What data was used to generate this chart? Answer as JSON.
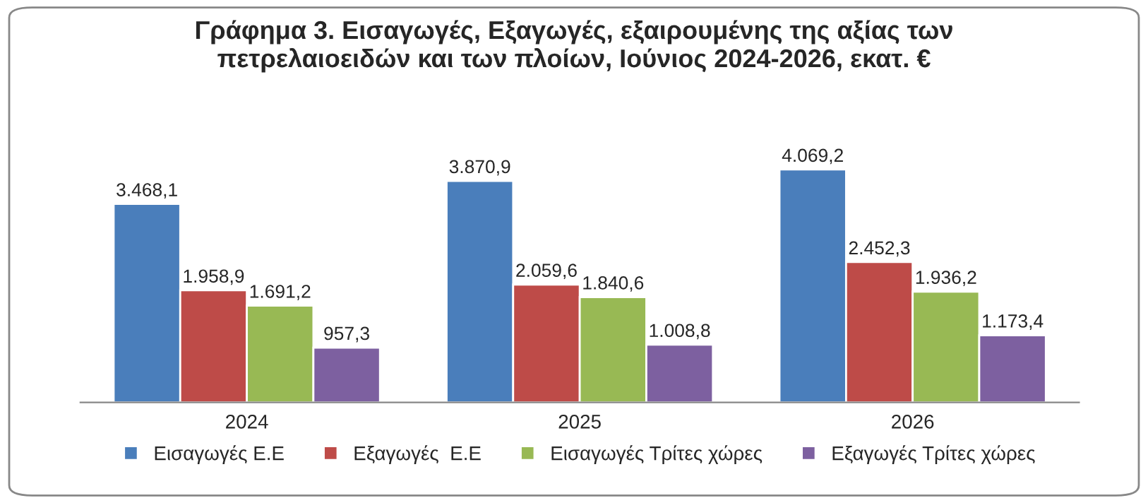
{
  "chart_data": {
    "type": "bar",
    "title": "Γράφημα 3. Εισαγωγές, Εξαγωγές, εξαιρουμένης της αξίας των\nπετρελαιοειδών και των πλοίων, Ιούνιος 2024-2026, εκατ. €",
    "categories": [
      "2024",
      "2025",
      "2026"
    ],
    "series": [
      {
        "name": "Εισαγωγές Ε.Ε",
        "color": "#4a7ebb",
        "values": [
          3468.1,
          3870.9,
          4069.2
        ],
        "value_labels": [
          "3.468,1",
          "3.870,9",
          "4.069,2"
        ]
      },
      {
        "name": "Εξαγωγές  Ε.Ε",
        "color": "#be4b48",
        "values": [
          1958.9,
          2059.6,
          2452.3
        ],
        "value_labels": [
          "1.958,9",
          "2.059,6",
          "2.452,3"
        ]
      },
      {
        "name": "Εισαγωγές Τρίτες χώρες",
        "color": "#98b954",
        "values": [
          1691.2,
          1840.6,
          1936.2
        ],
        "value_labels": [
          "1.691,2",
          "1.840,6",
          "1.936,2"
        ]
      },
      {
        "name": "Εξαγωγές Τρίτες χώρες",
        "color": "#7d60a0",
        "values": [
          957.3,
          1008.8,
          1173.4
        ],
        "value_labels": [
          "957,3",
          "1.008,8",
          "1.173,4"
        ]
      }
    ],
    "legend": "bottom",
    "grid": false
  }
}
